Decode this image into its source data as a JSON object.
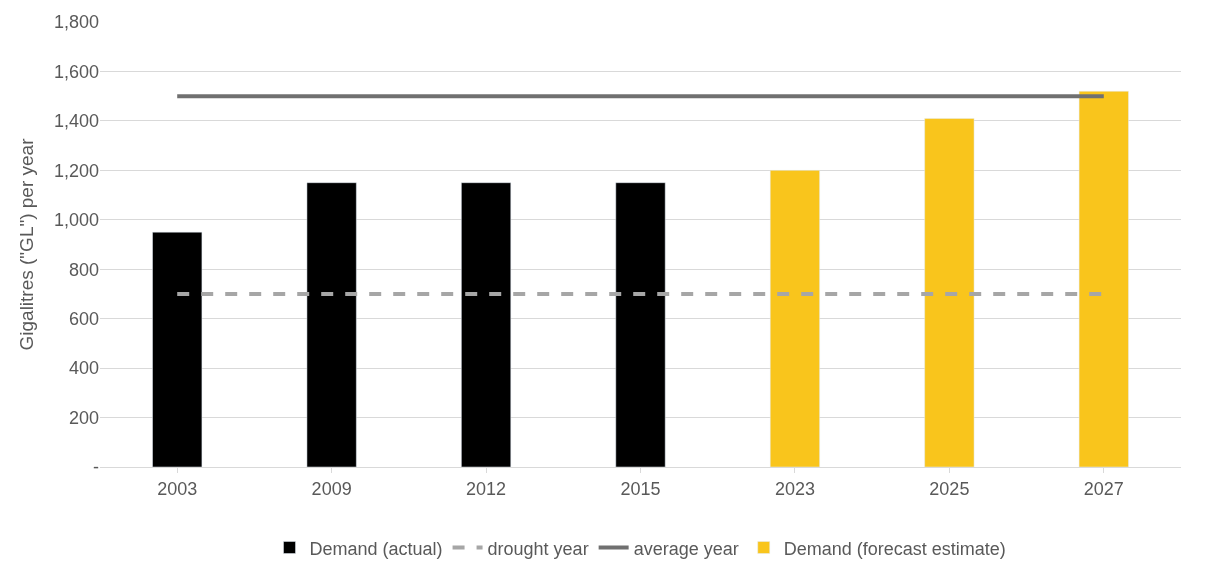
{
  "chart_data": {
    "type": "bar",
    "ylabel": "Gigalitres (\"GL\") per year",
    "categories": [
      "2003",
      "2009",
      "2012",
      "2015",
      "2023",
      "2025",
      "2027"
    ],
    "series": [
      {
        "name": "Demand (actual)",
        "color": "#000000",
        "values": [
          950,
          1150,
          1150,
          1150,
          null,
          null,
          null
        ]
      },
      {
        "name": "drought year",
        "type": "line",
        "line_style": "dashed",
        "color": "#a6a6a6",
        "values": [
          700,
          700,
          700,
          700,
          700,
          700,
          700
        ]
      },
      {
        "name": "average year",
        "type": "line",
        "line_style": "solid",
        "color": "#707070",
        "values": [
          1500,
          1500,
          1500,
          1500,
          1500,
          1500,
          1500
        ]
      },
      {
        "name": "Demand (forecast estimate)",
        "color": "#f9c51c",
        "values": [
          null,
          null,
          null,
          null,
          1200,
          1410,
          1520
        ]
      }
    ],
    "ylim": [
      0,
      1800
    ],
    "yticks": [
      {
        "value": 0,
        "label": "-"
      },
      {
        "value": 200,
        "label": "200"
      },
      {
        "value": 400,
        "label": "400"
      },
      {
        "value": 600,
        "label": "600"
      },
      {
        "value": 800,
        "label": "800"
      },
      {
        "value": 1000,
        "label": "1,000"
      },
      {
        "value": 1200,
        "label": "1,200"
      },
      {
        "value": 1400,
        "label": "1,400"
      },
      {
        "value": 1600,
        "label": "1,600"
      },
      {
        "value": 1800,
        "label": "1,800"
      }
    ],
    "grid": "y",
    "legend": "bottom"
  }
}
